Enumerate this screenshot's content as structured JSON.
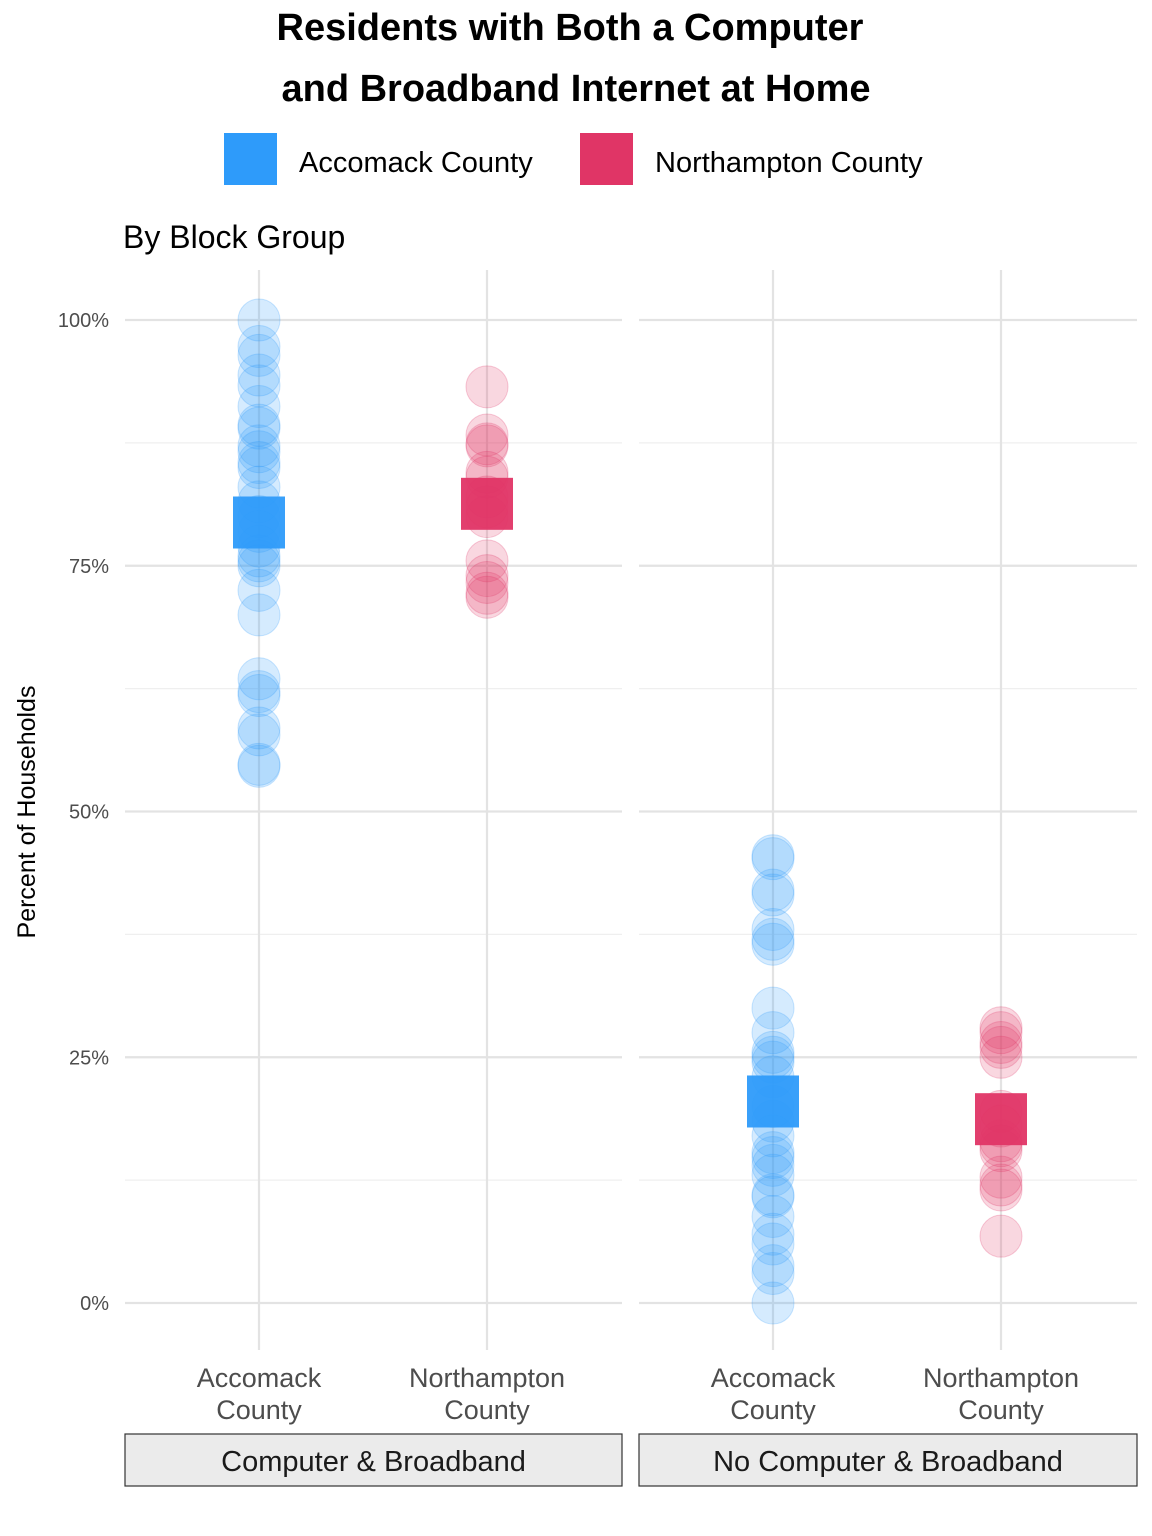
{
  "chart_data": {
    "type": "scatter",
    "title_lines": [
      "Residents with Both a Computer",
      "and Broadband Internet at Home"
    ],
    "subtitle": "By Block Group",
    "ylabel": "Percent of Households",
    "xlabel": "",
    "ylim": [
      -0.045,
      1.05
    ],
    "y_ticks": [
      0,
      0.25,
      0.5,
      0.75,
      1.0
    ],
    "y_tick_labels": [
      "0%",
      "25%",
      "50%",
      "75%",
      "100%"
    ],
    "legend_position": "top",
    "legend": [
      {
        "label": "Accomack County",
        "color": "#2e9bfa"
      },
      {
        "label": "Northampton County",
        "color": "#e03566"
      }
    ],
    "categories": [
      {
        "lines": [
          "Accomack",
          "County"
        ]
      },
      {
        "lines": [
          "Northampton",
          "County"
        ]
      }
    ],
    "panels": [
      {
        "strip": "Computer & Broadband",
        "series": [
          {
            "name": "Accomack County",
            "color": "#2e9bfa",
            "points": [
              1.0,
              0.973,
              0.964,
              0.944,
              0.933,
              0.912,
              0.893,
              0.89,
              0.872,
              0.866,
              0.855,
              0.85,
              0.83,
              0.815,
              0.8,
              0.785,
              0.77,
              0.76,
              0.755,
              0.75,
              0.725,
              0.7,
              0.635,
              0.622,
              0.618,
              0.585,
              0.578,
              0.548,
              0.546
            ],
            "mean": 0.794
          },
          {
            "name": "Northampton County",
            "color": "#e03566",
            "points": [
              0.932,
              0.883,
              0.874,
              0.872,
              0.845,
              0.84,
              0.82,
              0.81,
              0.8,
              0.755,
              0.74,
              0.733,
              0.722,
              0.718
            ],
            "mean": 0.813
          }
        ]
      },
      {
        "strip": "No Computer & Broadband",
        "series": [
          {
            "name": "Accomack County",
            "color": "#2e9bfa",
            "points": [
              0.455,
              0.452,
              0.42,
              0.415,
              0.38,
              0.37,
              0.365,
              0.3,
              0.275,
              0.255,
              0.25,
              0.245,
              0.23,
              0.2,
              0.185,
              0.17,
              0.153,
              0.148,
              0.14,
              0.13,
              0.11,
              0.108,
              0.088,
              0.07,
              0.06,
              0.038,
              0.03,
              0.0
            ],
            "mean": 0.205
          },
          {
            "name": "Northampton County",
            "color": "#e03566",
            "points": [
              0.28,
              0.275,
              0.265,
              0.26,
              0.25,
              0.195,
              0.18,
              0.165,
              0.16,
              0.155,
              0.128,
              0.12,
              0.115,
              0.068
            ],
            "mean": 0.187
          }
        ]
      }
    ]
  }
}
